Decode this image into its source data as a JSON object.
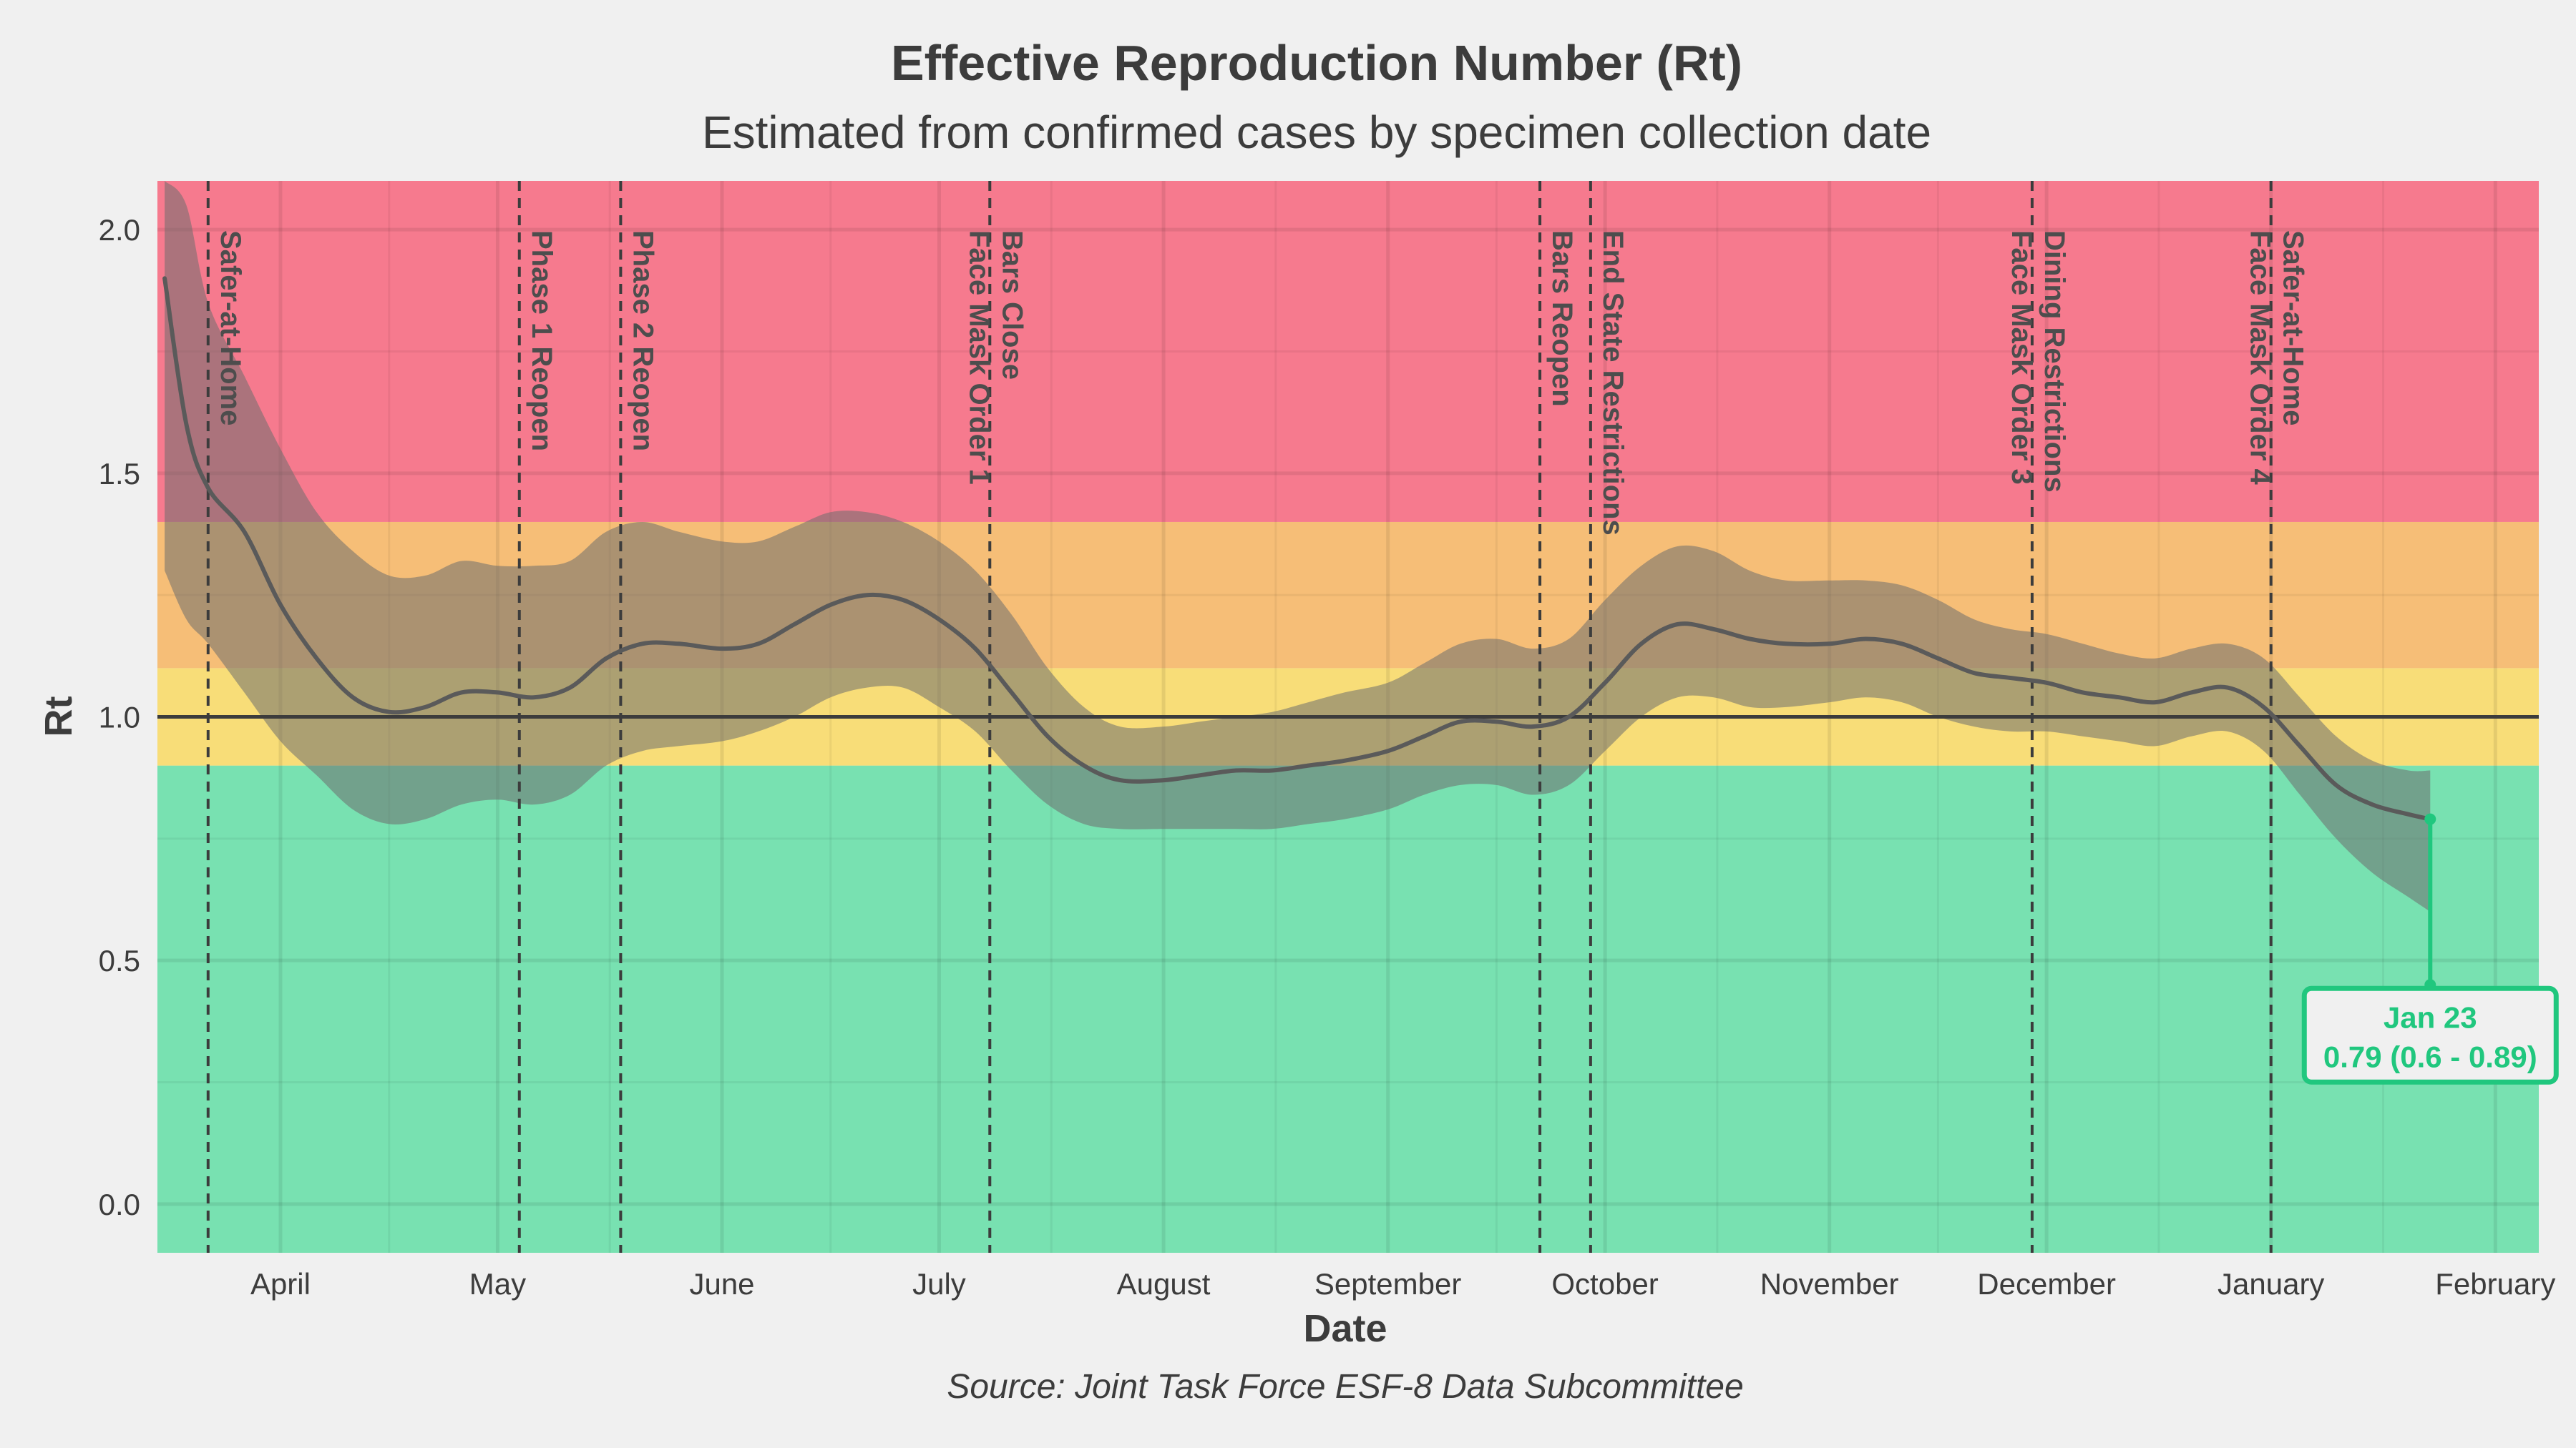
{
  "chart_data": {
    "type": "line",
    "title": "Effective Reproduction Number (Rt)",
    "subtitle": "Estimated from confirmed cases by specimen collection date",
    "xlabel": "Date",
    "ylabel": "Rt",
    "source": "Source: Joint Task Force ESF-8 Data Subcommittee",
    "x_axis": {
      "type": "date",
      "range": [
        "2020-03-15",
        "2021-02-07"
      ],
      "ticks": [
        {
          "date": "2020-04-01",
          "label": "April"
        },
        {
          "date": "2020-05-01",
          "label": "May"
        },
        {
          "date": "2020-06-01",
          "label": "June"
        },
        {
          "date": "2020-07-01",
          "label": "July"
        },
        {
          "date": "2020-08-01",
          "label": "August"
        },
        {
          "date": "2020-09-01",
          "label": "September"
        },
        {
          "date": "2020-10-01",
          "label": "October"
        },
        {
          "date": "2020-11-01",
          "label": "November"
        },
        {
          "date": "2020-12-01",
          "label": "December"
        },
        {
          "date": "2021-01-01",
          "label": "January"
        },
        {
          "date": "2021-02-01",
          "label": "February"
        }
      ]
    },
    "y_axis": {
      "range": [
        -0.1,
        2.1
      ],
      "ticks": [
        0.0,
        0.5,
        1.0,
        1.5,
        2.0
      ],
      "tick_labels": [
        "0.0",
        "0.5",
        "1.0",
        "1.5",
        "2.0"
      ]
    },
    "grid": true,
    "reference_line": 1.0,
    "bands": [
      {
        "from": -0.1,
        "to": 0.9,
        "color": "#78e1b1"
      },
      {
        "from": 0.9,
        "to": 1.1,
        "color": "#f8dd78"
      },
      {
        "from": 1.1,
        "to": 1.4,
        "color": "#f6be77"
      },
      {
        "from": 1.4,
        "to": 2.1,
        "color": "#f67a8e"
      }
    ],
    "series": [
      {
        "color": "#5a5a5a",
        "band_color": "#6e6e6e",
        "points": [
          {
            "x": "2020-03-16",
            "y": 1.9,
            "lo": 1.3,
            "hi": 2.2
          },
          {
            "x": "2020-03-19",
            "y": 1.6,
            "lo": 1.2,
            "hi": 2.05
          },
          {
            "x": "2020-03-22",
            "y": 1.47,
            "lo": 1.15,
            "hi": 1.85
          },
          {
            "x": "2020-03-27",
            "y": 1.38,
            "lo": 1.05,
            "hi": 1.7
          },
          {
            "x": "2020-04-01",
            "y": 1.23,
            "lo": 0.95,
            "hi": 1.55
          },
          {
            "x": "2020-04-06",
            "y": 1.12,
            "lo": 0.88,
            "hi": 1.42
          },
          {
            "x": "2020-04-11",
            "y": 1.04,
            "lo": 0.81,
            "hi": 1.34
          },
          {
            "x": "2020-04-16",
            "y": 1.01,
            "lo": 0.78,
            "hi": 1.29
          },
          {
            "x": "2020-04-21",
            "y": 1.02,
            "lo": 0.79,
            "hi": 1.29
          },
          {
            "x": "2020-04-26",
            "y": 1.05,
            "lo": 0.82,
            "hi": 1.32
          },
          {
            "x": "2020-05-01",
            "y": 1.05,
            "lo": 0.83,
            "hi": 1.31
          },
          {
            "x": "2020-05-06",
            "y": 1.04,
            "lo": 0.82,
            "hi": 1.31
          },
          {
            "x": "2020-05-11",
            "y": 1.06,
            "lo": 0.84,
            "hi": 1.32
          },
          {
            "x": "2020-05-16",
            "y": 1.12,
            "lo": 0.9,
            "hi": 1.38
          },
          {
            "x": "2020-05-21",
            "y": 1.15,
            "lo": 0.93,
            "hi": 1.4
          },
          {
            "x": "2020-05-26",
            "y": 1.15,
            "lo": 0.94,
            "hi": 1.38
          },
          {
            "x": "2020-06-01",
            "y": 1.14,
            "lo": 0.95,
            "hi": 1.36
          },
          {
            "x": "2020-06-06",
            "y": 1.15,
            "lo": 0.97,
            "hi": 1.36
          },
          {
            "x": "2020-06-11",
            "y": 1.19,
            "lo": 1.0,
            "hi": 1.39
          },
          {
            "x": "2020-06-16",
            "y": 1.23,
            "lo": 1.04,
            "hi": 1.42
          },
          {
            "x": "2020-06-21",
            "y": 1.25,
            "lo": 1.06,
            "hi": 1.42
          },
          {
            "x": "2020-06-26",
            "y": 1.24,
            "lo": 1.06,
            "hi": 1.4
          },
          {
            "x": "2020-07-01",
            "y": 1.2,
            "lo": 1.02,
            "hi": 1.36
          },
          {
            "x": "2020-07-06",
            "y": 1.14,
            "lo": 0.97,
            "hi": 1.3
          },
          {
            "x": "2020-07-11",
            "y": 1.05,
            "lo": 0.89,
            "hi": 1.21
          },
          {
            "x": "2020-07-16",
            "y": 0.96,
            "lo": 0.82,
            "hi": 1.1
          },
          {
            "x": "2020-07-21",
            "y": 0.9,
            "lo": 0.78,
            "hi": 1.02
          },
          {
            "x": "2020-07-26",
            "y": 0.87,
            "lo": 0.77,
            "hi": 0.98
          },
          {
            "x": "2020-08-01",
            "y": 0.87,
            "lo": 0.77,
            "hi": 0.98
          },
          {
            "x": "2020-08-06",
            "y": 0.88,
            "lo": 0.77,
            "hi": 0.99
          },
          {
            "x": "2020-08-11",
            "y": 0.89,
            "lo": 0.77,
            "hi": 1.0
          },
          {
            "x": "2020-08-16",
            "y": 0.89,
            "lo": 0.77,
            "hi": 1.01
          },
          {
            "x": "2020-08-21",
            "y": 0.9,
            "lo": 0.78,
            "hi": 1.03
          },
          {
            "x": "2020-08-26",
            "y": 0.91,
            "lo": 0.79,
            "hi": 1.05
          },
          {
            "x": "2020-09-01",
            "y": 0.93,
            "lo": 0.81,
            "hi": 1.07
          },
          {
            "x": "2020-09-06",
            "y": 0.96,
            "lo": 0.84,
            "hi": 1.11
          },
          {
            "x": "2020-09-11",
            "y": 0.99,
            "lo": 0.86,
            "hi": 1.15
          },
          {
            "x": "2020-09-16",
            "y": 0.99,
            "lo": 0.86,
            "hi": 1.16
          },
          {
            "x": "2020-09-21",
            "y": 0.98,
            "lo": 0.84,
            "hi": 1.14
          },
          {
            "x": "2020-09-26",
            "y": 1.0,
            "lo": 0.86,
            "hi": 1.16
          },
          {
            "x": "2020-10-01",
            "y": 1.07,
            "lo": 0.93,
            "hi": 1.24
          },
          {
            "x": "2020-10-06",
            "y": 1.15,
            "lo": 1.0,
            "hi": 1.31
          },
          {
            "x": "2020-10-11",
            "y": 1.19,
            "lo": 1.04,
            "hi": 1.35
          },
          {
            "x": "2020-10-16",
            "y": 1.18,
            "lo": 1.04,
            "hi": 1.34
          },
          {
            "x": "2020-10-21",
            "y": 1.16,
            "lo": 1.02,
            "hi": 1.3
          },
          {
            "x": "2020-10-26",
            "y": 1.15,
            "lo": 1.02,
            "hi": 1.28
          },
          {
            "x": "2020-11-01",
            "y": 1.15,
            "lo": 1.03,
            "hi": 1.28
          },
          {
            "x": "2020-11-06",
            "y": 1.16,
            "lo": 1.04,
            "hi": 1.28
          },
          {
            "x": "2020-11-11",
            "y": 1.15,
            "lo": 1.03,
            "hi": 1.27
          },
          {
            "x": "2020-11-16",
            "y": 1.12,
            "lo": 1.0,
            "hi": 1.24
          },
          {
            "x": "2020-11-21",
            "y": 1.09,
            "lo": 0.98,
            "hi": 1.2
          },
          {
            "x": "2020-11-26",
            "y": 1.08,
            "lo": 0.97,
            "hi": 1.18
          },
          {
            "x": "2020-12-01",
            "y": 1.07,
            "lo": 0.97,
            "hi": 1.17
          },
          {
            "x": "2020-12-06",
            "y": 1.05,
            "lo": 0.96,
            "hi": 1.15
          },
          {
            "x": "2020-12-11",
            "y": 1.04,
            "lo": 0.95,
            "hi": 1.13
          },
          {
            "x": "2020-12-16",
            "y": 1.03,
            "lo": 0.94,
            "hi": 1.12
          },
          {
            "x": "2020-12-21",
            "y": 1.05,
            "lo": 0.96,
            "hi": 1.14
          },
          {
            "x": "2020-12-26",
            "y": 1.06,
            "lo": 0.97,
            "hi": 1.15
          },
          {
            "x": "2020-12-31",
            "y": 1.02,
            "lo": 0.93,
            "hi": 1.12
          },
          {
            "x": "2021-01-05",
            "y": 0.94,
            "lo": 0.84,
            "hi": 1.04
          },
          {
            "x": "2021-01-10",
            "y": 0.86,
            "lo": 0.75,
            "hi": 0.96
          },
          {
            "x": "2021-01-15",
            "y": 0.82,
            "lo": 0.68,
            "hi": 0.91
          },
          {
            "x": "2021-01-20",
            "y": 0.8,
            "lo": 0.63,
            "hi": 0.89
          },
          {
            "x": "2021-01-23",
            "y": 0.79,
            "lo": 0.6,
            "hi": 0.89
          }
        ]
      }
    ],
    "events": [
      {
        "x": "2020-03-22",
        "lines": [
          "Safer-at-Home"
        ]
      },
      {
        "x": "2020-05-04",
        "lines": [
          "Phase 1 Reopen"
        ]
      },
      {
        "x": "2020-05-18",
        "lines": [
          "Phase 2 Reopen"
        ]
      },
      {
        "x": "2020-07-08",
        "lines": [
          "Face Mask Order 1",
          "Bars Close"
        ]
      },
      {
        "x": "2020-09-22",
        "lines": [
          "Bars Reopen"
        ]
      },
      {
        "x": "2020-09-29",
        "lines": [
          "End State Restrictions"
        ]
      },
      {
        "x": "2020-11-29",
        "lines": [
          "Face Mask Order 3",
          "Dining Restrictions"
        ]
      },
      {
        "x": "2021-01-01",
        "lines": [
          "Face Mask Order 4",
          "Safer-at-Home"
        ]
      }
    ],
    "callout": {
      "x": "2021-01-23",
      "y": 0.79,
      "label_y": 0.45,
      "line1": "Jan 23",
      "line2": "0.79 (0.6 - 0.89)",
      "color": "#20c77e"
    }
  }
}
